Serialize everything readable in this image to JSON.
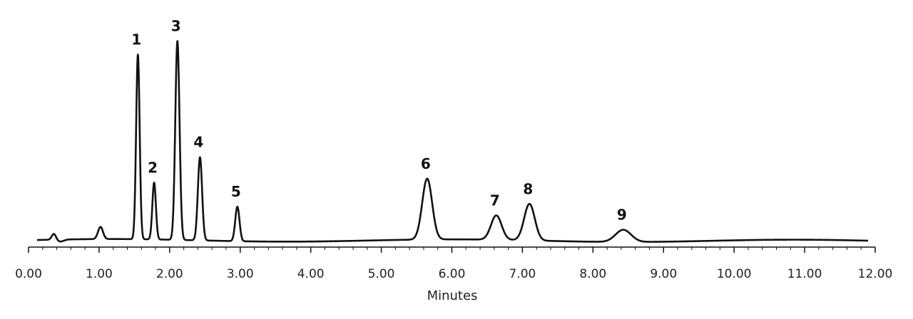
{
  "chart_data": {
    "type": "line",
    "title": "",
    "xlabel": "Minutes",
    "ylabel": "",
    "xlim": [
      0,
      12
    ],
    "ylim": [
      0,
      1
    ],
    "grid": false,
    "legend": "none",
    "xticks": [
      0,
      1,
      2,
      3,
      4,
      5,
      6,
      7,
      8,
      9,
      10,
      11,
      12
    ],
    "xtick_labels": [
      "0.00",
      "1.00",
      "2.00",
      "3.00",
      "4.00",
      "5.00",
      "6.00",
      "7.00",
      "8.00",
      "9.00",
      "10.00",
      "11.00",
      "12.00"
    ],
    "baseline": 0.02,
    "trace_end": 11.9,
    "peaks": [
      {
        "label": "",
        "x": 0.36,
        "height": 0.03,
        "width": 0.03
      },
      {
        "label": "",
        "x": 1.02,
        "height": 0.06,
        "width": 0.035
      },
      {
        "label": "1",
        "x": 1.55,
        "height": 0.91,
        "width": 0.025
      },
      {
        "label": "2",
        "x": 1.78,
        "height": 0.28,
        "width": 0.025
      },
      {
        "label": "3",
        "x": 2.11,
        "height": 0.98,
        "width": 0.03
      },
      {
        "label": "4",
        "x": 2.43,
        "height": 0.41,
        "width": 0.03
      },
      {
        "label": "5",
        "x": 2.96,
        "height": 0.17,
        "width": 0.03
      },
      {
        "label": "6",
        "x": 5.65,
        "height": 0.3,
        "width": 0.07
      },
      {
        "label": "7",
        "x": 6.63,
        "height": 0.12,
        "width": 0.075
      },
      {
        "label": "8",
        "x": 7.1,
        "height": 0.18,
        "width": 0.075
      },
      {
        "label": "9",
        "x": 8.43,
        "height": 0.06,
        "width": 0.11
      }
    ]
  }
}
